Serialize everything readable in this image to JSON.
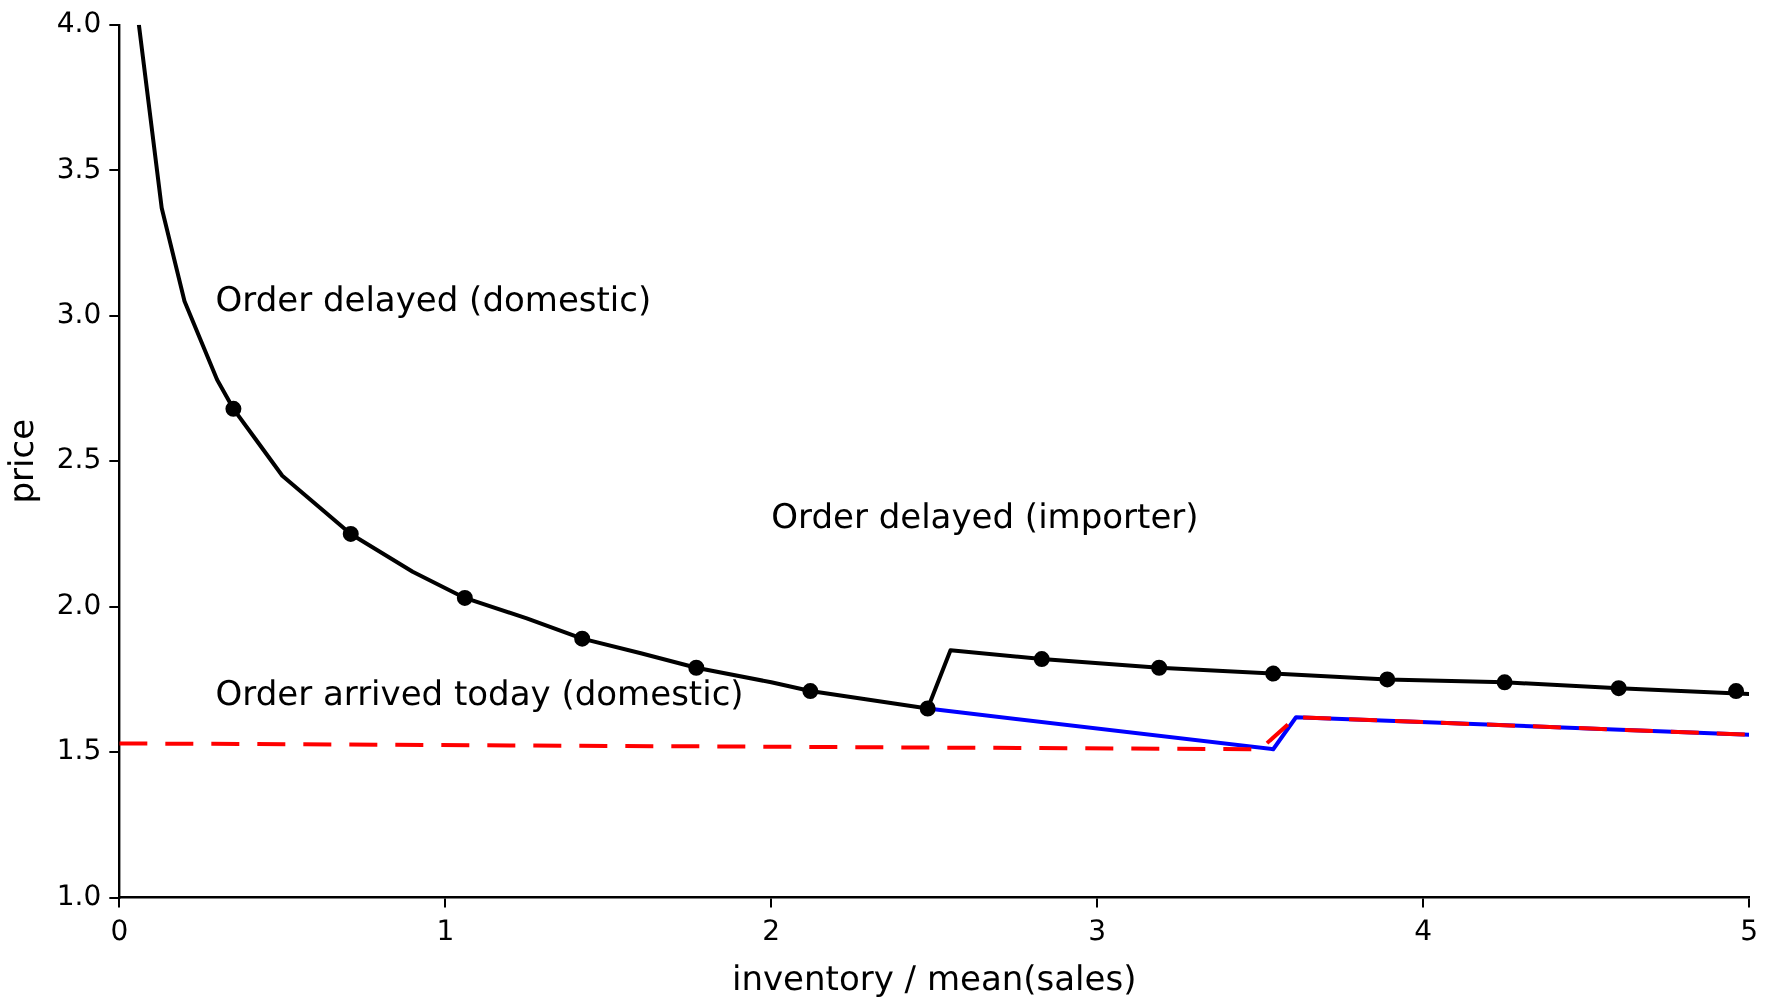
{
  "chart_data": {
    "type": "line",
    "xlabel": "inventory / mean(sales)",
    "ylabel": "price",
    "xlim": [
      0,
      5
    ],
    "xticks": [
      0,
      1,
      2,
      3,
      4,
      5
    ],
    "ylim": [
      1,
      4
    ],
    "yticks": [
      {
        "value": 1,
        "label": "1.0"
      },
      {
        "value": 1.5,
        "label": "1.5"
      },
      {
        "value": 2,
        "label": "2.0"
      },
      {
        "value": 2.5,
        "label": "2.5"
      },
      {
        "value": 3,
        "label": "3.0"
      },
      {
        "value": 3.5,
        "label": "3.5"
      },
      {
        "value": 4,
        "label": "4.0"
      }
    ],
    "grid": false,
    "legend": false,
    "series": [
      {
        "color": "#0000ff",
        "line_style": "solid",
        "marker": "none",
        "x": [
          2.48,
          3.54,
          3.61,
          5
        ],
        "values": [
          1.65,
          1.51,
          1.62,
          1.56
        ]
      },
      {
        "color": "#ff0000",
        "line_style": "dashed",
        "marker": "none",
        "x": [
          0,
          3.5,
          3.61,
          5
        ],
        "values": [
          1.53,
          1.51,
          1.62,
          1.56
        ]
      },
      {
        "color": "#000000",
        "line_style": "solid",
        "marker": "none",
        "x": [
          0.06,
          0.13,
          0.2,
          0.3,
          0.35,
          0.5,
          0.71,
          0.9,
          1.06,
          1.25,
          1.42,
          1.6,
          1.77,
          2.0,
          2.12,
          2.3,
          2.48,
          2.55,
          2.83,
          3.19,
          3.54,
          3.89,
          4.25,
          4.6,
          5
        ],
        "values": [
          4.0,
          3.37,
          3.05,
          2.78,
          2.68,
          2.45,
          2.25,
          2.12,
          2.03,
          1.96,
          1.89,
          1.84,
          1.79,
          1.74,
          1.71,
          1.68,
          1.65,
          1.85,
          1.82,
          1.79,
          1.77,
          1.75,
          1.74,
          1.72,
          1.7
        ]
      },
      {
        "type": "scatter",
        "color": "#000000",
        "marker": "circle",
        "x": [
          0.35,
          0.71,
          1.06,
          1.42,
          1.77,
          2.12,
          2.48,
          2.83,
          3.19,
          3.54,
          3.89,
          4.25,
          4.6,
          4.96
        ],
        "values": [
          2.68,
          2.25,
          2.03,
          1.89,
          1.79,
          1.71,
          1.65,
          1.82,
          1.79,
          1.77,
          1.75,
          1.74,
          1.72,
          1.71
        ]
      }
    ],
    "annotations": [
      "Order delayed (domestic)",
      "Order delayed (importer)",
      "Order arrived today (domestic)"
    ]
  }
}
